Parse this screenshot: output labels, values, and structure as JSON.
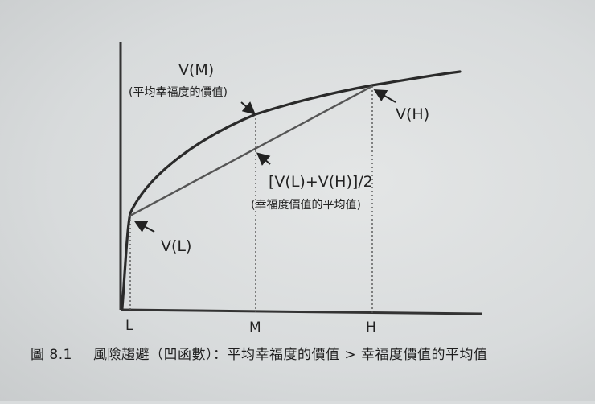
{
  "labels": {
    "vm": "V(M)",
    "vm_note": "(平均幸福度的價值)",
    "vh": "V(H)",
    "vl": "V(L)",
    "avg": "[V(L)+V(H)]/2",
    "avg_note": "(幸福度價值的平均值)",
    "x_l": "L",
    "x_m": "M",
    "x_h": "H"
  },
  "caption": {
    "number": "圖 8.1",
    "text": "風險趨避（凹函數）：平均幸福度的價值 > 幸福度價值的平均值"
  }
}
